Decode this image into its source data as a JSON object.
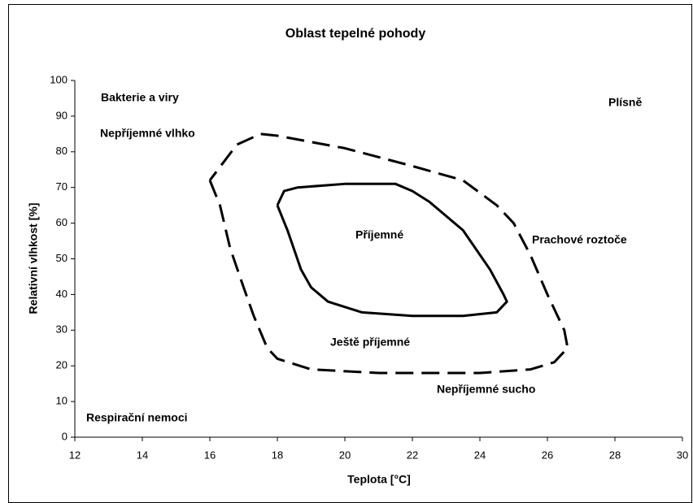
{
  "chart_data": {
    "type": "line",
    "title": "Oblast tepelné pohody",
    "xlabel": "Teplota [°C]",
    "ylabel": "Relativní vlhkost [%]",
    "xlim": [
      12,
      30
    ],
    "xticks": [
      12,
      14,
      16,
      18,
      20,
      22,
      24,
      26,
      28,
      30
    ],
    "ylim": [
      0,
      100
    ],
    "yticks": [
      0,
      10,
      20,
      30,
      40,
      50,
      60,
      70,
      80,
      90,
      100
    ],
    "grid": false,
    "annotations": [
      "Bakterie a viry",
      "Plísně",
      "Nepříjemné vlhko",
      "Příjemné",
      "Prachové roztoče",
      "Ještě příjemné",
      "Nepříjemné sucho",
      "Respirační nemoci"
    ],
    "series": [
      {
        "color": "#000000",
        "dashed": false,
        "x": [
          18,
          18.2,
          18.6,
          20,
          21.5,
          22,
          22.5,
          23.5,
          24.3,
          24.7,
          24.8,
          24.5,
          23.5,
          22,
          20.5,
          19.5,
          19,
          18.7,
          18.3,
          18
        ],
        "values": [
          65,
          69,
          70,
          71,
          71,
          69,
          66,
          58,
          47,
          40,
          38,
          35,
          34,
          34,
          35,
          38,
          42,
          47,
          58,
          65
        ]
      },
      {
        "color": "#000000",
        "dashed": true,
        "x": [
          16,
          16.3,
          16.6,
          17,
          17.3,
          17.7,
          18,
          19,
          21,
          24,
          25.5,
          26.2,
          26.6,
          26.5,
          26,
          25.5,
          25,
          24.5,
          23.5,
          22,
          20,
          18,
          17.5,
          16.8,
          16
        ],
        "values": [
          72,
          65,
          53,
          42,
          34,
          25,
          22,
          19,
          18,
          18,
          19,
          21,
          25,
          30,
          40,
          51,
          60,
          65,
          72,
          76,
          81,
          84.5,
          85,
          82,
          72
        ]
      }
    ]
  }
}
